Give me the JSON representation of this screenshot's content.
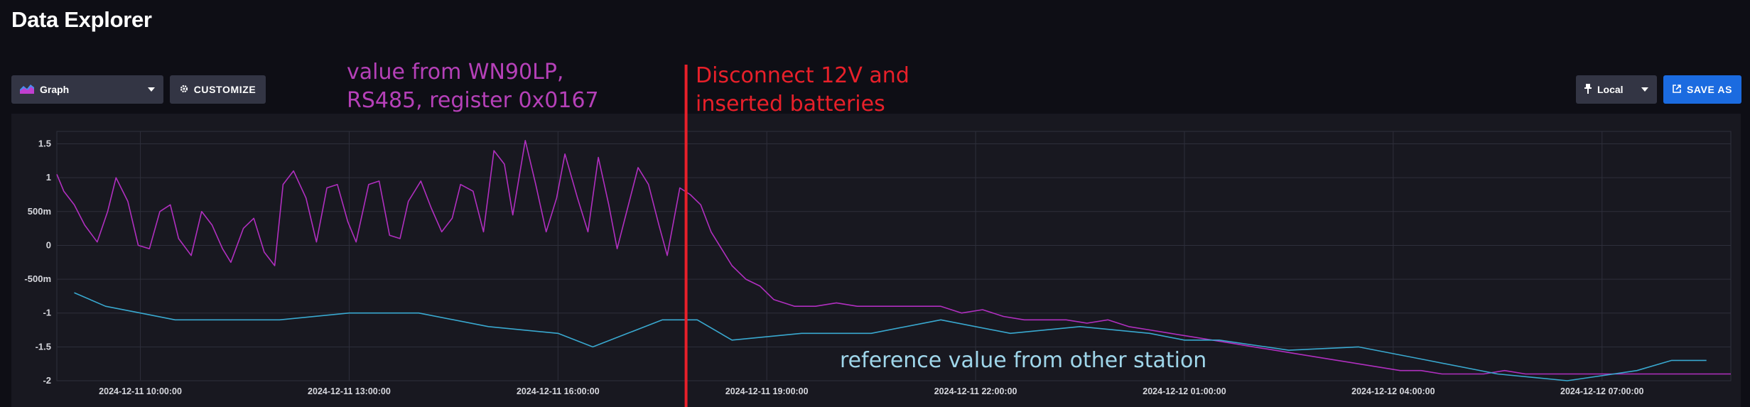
{
  "header": {
    "title": "Data Explorer"
  },
  "toolbar": {
    "graph_type_label": "Graph",
    "customize_label": "CUSTOMIZE",
    "timezone_label": "Local",
    "save_as_label": "SAVE AS"
  },
  "annotations": {
    "purple_line1": "value from WN90LP,",
    "purple_line2": "RS485, register 0x0167",
    "red_line1": "Disconnect 12V and",
    "red_line2": "inserted batteries",
    "blue": "reference value from other station"
  },
  "chart_data": {
    "type": "line",
    "xlabel": "",
    "ylabel": "",
    "ylim": [
      -2,
      1.6
    ],
    "xlim": [
      -1.2,
      22.85
    ],
    "x_origin": "2024-12-11 10:00:00",
    "ytick_values": [
      1.5,
      1,
      0.5,
      0,
      -0.5,
      -1,
      -1.5,
      -2
    ],
    "ytick_labels": [
      "1.5",
      "1",
      "500m",
      "0",
      "-500m",
      "-1",
      "-1.5",
      "-2"
    ],
    "xtick_values": [
      0,
      3,
      6,
      9,
      12,
      15,
      18,
      21
    ],
    "xtick_labels": [
      "2024-12-11 10:00:00",
      "2024-12-11 13:00:00",
      "2024-12-11 16:00:00",
      "2024-12-11 19:00:00",
      "2024-12-11 22:00:00",
      "2024-12-12 01:00:00",
      "2024-12-12 04:00:00",
      "2024-12-12 07:00:00"
    ],
    "event_marker_x": 7.84,
    "colors": {
      "purple": "#b02fbf",
      "blue": "#39a8cf",
      "marker": "#e8202a",
      "grid": "#2e2f3b"
    },
    "series": [
      {
        "color": "#b02fbf",
        "x": [
          -1.2,
          -1.1,
          -0.95,
          -0.8,
          -0.62,
          -0.47,
          -0.35,
          -0.18,
          -0.03,
          0.13,
          0.28,
          0.43,
          0.55,
          0.73,
          0.88,
          1.03,
          1.18,
          1.3,
          1.48,
          1.63,
          1.78,
          1.93,
          2.05,
          2.2,
          2.38,
          2.53,
          2.68,
          2.83,
          2.98,
          3.1,
          3.28,
          3.43,
          3.58,
          3.73,
          3.85,
          4.03,
          4.18,
          4.33,
          4.48,
          4.6,
          4.78,
          4.93,
          5.08,
          5.23,
          5.35,
          5.53,
          5.68,
          5.83,
          5.98,
          6.1,
          6.28,
          6.43,
          6.58,
          6.73,
          6.85,
          7.0,
          7.15,
          7.3,
          7.45,
          7.57,
          7.75,
          7.9,
          8.05,
          8.2,
          8.35,
          8.5,
          8.7,
          8.9,
          9.1,
          9.4,
          9.7,
          10.0,
          10.3,
          10.6,
          10.9,
          11.2,
          11.5,
          11.8,
          12.1,
          12.4,
          12.7,
          13.0,
          13.3,
          13.6,
          13.9,
          14.2,
          14.5,
          14.8,
          15.1,
          15.4,
          15.7,
          16.0,
          16.3,
          16.6,
          16.9,
          17.2,
          17.5,
          17.8,
          18.1,
          18.4,
          18.7,
          19.0,
          19.3,
          19.6,
          19.9,
          20.2,
          20.5,
          20.8,
          21.1,
          21.4,
          21.7,
          22.0,
          22.3,
          22.6,
          22.85
        ],
        "y": [
          1.05,
          0.8,
          0.6,
          0.3,
          0.05,
          0.5,
          1.0,
          0.65,
          0.0,
          -0.05,
          0.5,
          0.6,
          0.1,
          -0.15,
          0.5,
          0.3,
          -0.05,
          -0.25,
          0.25,
          0.4,
          -0.1,
          -0.3,
          0.9,
          1.1,
          0.7,
          0.05,
          0.85,
          0.9,
          0.35,
          0.05,
          0.9,
          0.95,
          0.15,
          0.1,
          0.65,
          0.95,
          0.55,
          0.2,
          0.4,
          0.9,
          0.8,
          0.2,
          1.4,
          1.2,
          0.45,
          1.55,
          0.9,
          0.2,
          0.7,
          1.35,
          0.7,
          0.2,
          1.3,
          0.6,
          -0.05,
          0.55,
          1.15,
          0.9,
          0.3,
          -0.15,
          0.85,
          0.75,
          0.6,
          0.2,
          -0.05,
          -0.3,
          -0.5,
          -0.6,
          -0.8,
          -0.9,
          -0.9,
          -0.85,
          -0.9,
          -0.9,
          -0.9,
          -0.9,
          -0.9,
          -1.0,
          -0.95,
          -1.05,
          -1.1,
          -1.1,
          -1.1,
          -1.15,
          -1.1,
          -1.2,
          -1.25,
          -1.3,
          -1.35,
          -1.4,
          -1.45,
          -1.5,
          -1.55,
          -1.6,
          -1.65,
          -1.7,
          -1.75,
          -1.8,
          -1.85,
          -1.85,
          -1.9,
          -1.9,
          -1.9,
          -1.85,
          -1.9,
          -1.9,
          -1.9,
          -1.9,
          -1.9,
          -1.9,
          -1.9,
          -1.9,
          -1.9,
          -1.9,
          -1.9
        ]
      },
      {
        "color": "#39a8cf",
        "x": [
          -0.95,
          -0.5,
          0.0,
          0.5,
          1.0,
          2.0,
          3.0,
          4.0,
          5.0,
          6.0,
          6.5,
          7.0,
          7.5,
          8.0,
          8.5,
          9.5,
          10.5,
          11.5,
          12.5,
          13.5,
          14.5,
          15.0,
          15.5,
          16.5,
          17.5,
          18.5,
          19.5,
          20.5,
          21.5,
          22.0,
          22.5
        ],
        "y": [
          -0.7,
          -0.9,
          -1.0,
          -1.1,
          -1.1,
          -1.1,
          -1.0,
          -1.0,
          -1.2,
          -1.3,
          -1.5,
          -1.3,
          -1.1,
          -1.1,
          -1.4,
          -1.3,
          -1.3,
          -1.1,
          -1.3,
          -1.2,
          -1.3,
          -1.4,
          -1.4,
          -1.55,
          -1.5,
          -1.7,
          -1.9,
          -2.0,
          -1.85,
          -1.7,
          -1.7
        ]
      }
    ]
  }
}
